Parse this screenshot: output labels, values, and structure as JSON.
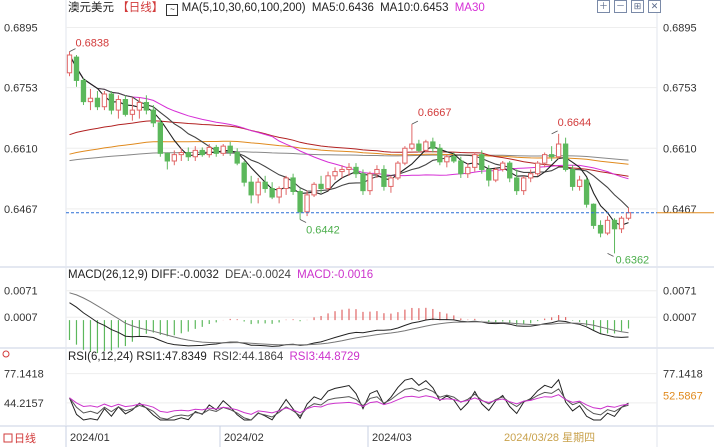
{
  "header": {
    "symbol": "澳元美元",
    "period": "【日线】",
    "ma_label": "MA(5,10,30,60,100,200)",
    "ma5": "MA5:0.6436",
    "ma10": "MA10:0.6453",
    "ma30": "MA30"
  },
  "toolbar": [
    "zoom-in-icon",
    "zoom-out-icon",
    "grid-icon",
    "close-icon"
  ],
  "colors": {
    "up": "#e06666",
    "down": "#5cb85c",
    "ma5": "#222222",
    "ma10": "#444444",
    "ma30": "#d62fd6",
    "ma60": "#b22222",
    "ma100": "#e08a1e",
    "ma200": "#888888",
    "dif": "#222222",
    "dea": "#777777",
    "macd_hist": "#cc33cc",
    "rsi1": "#222222",
    "rsi2": "#555555",
    "rsi3": "#cc33cc",
    "last_line": "#2a6fd6"
  },
  "chart_data": [
    {
      "type": "candlestick",
      "name": "price",
      "y_ticks": [
        "0.6895",
        "0.6753",
        "0.6610",
        "0.6467"
      ],
      "ylim": [
        0.6337,
        0.6922
      ],
      "x_ticks": [
        "2024/01",
        "2024/02",
        "2024/03",
        "2024/03/28 星期四"
      ],
      "annotations": [
        {
          "text": "0.6838",
          "value": 0.6838,
          "kind": "high"
        },
        {
          "text": "0.6442",
          "value": 0.6442,
          "kind": "low"
        },
        {
          "text": "0.6667",
          "value": 0.6667,
          "kind": "high"
        },
        {
          "text": "0.6644",
          "value": 0.6644,
          "kind": "high"
        },
        {
          "text": "0.6362",
          "value": 0.6362,
          "kind": "low"
        }
      ],
      "last_price": 0.6458,
      "candles": [
        [
          0.6788,
          0.6838,
          0.678,
          0.683
        ],
        [
          0.6825,
          0.683,
          0.6755,
          0.677
        ],
        [
          0.677,
          0.6775,
          0.6712,
          0.672
        ],
        [
          0.672,
          0.675,
          0.67,
          0.6728
        ],
        [
          0.6728,
          0.6745,
          0.67,
          0.6708
        ],
        [
          0.6708,
          0.6745,
          0.67,
          0.6738
        ],
        [
          0.6738,
          0.6745,
          0.669,
          0.67
        ],
        [
          0.67,
          0.6735,
          0.668,
          0.6725
        ],
        [
          0.6725,
          0.6735,
          0.6685,
          0.669
        ],
        [
          0.669,
          0.673,
          0.6675,
          0.67
        ],
        [
          0.67,
          0.673,
          0.668,
          0.6718
        ],
        [
          0.6718,
          0.6735,
          0.669,
          0.67
        ],
        [
          0.67,
          0.6712,
          0.666,
          0.667
        ],
        [
          0.667,
          0.668,
          0.659,
          0.6598
        ],
        [
          0.6598,
          0.66,
          0.656,
          0.658
        ],
        [
          0.658,
          0.6605,
          0.657,
          0.6595
        ],
        [
          0.6595,
          0.661,
          0.658,
          0.66
        ],
        [
          0.66,
          0.6612,
          0.658,
          0.659
        ],
        [
          0.659,
          0.6615,
          0.658,
          0.6605
        ],
        [
          0.6605,
          0.6612,
          0.659,
          0.6595
        ],
        [
          0.6595,
          0.662,
          0.6588,
          0.6612
        ],
        [
          0.6612,
          0.6618,
          0.659,
          0.6598
        ],
        [
          0.6598,
          0.662,
          0.6592,
          0.6615
        ],
        [
          0.6615,
          0.6625,
          0.6592,
          0.66
        ],
        [
          0.66,
          0.661,
          0.657,
          0.6575
        ],
        [
          0.6575,
          0.658,
          0.652,
          0.653
        ],
        [
          0.653,
          0.6545,
          0.648,
          0.65
        ],
        [
          0.65,
          0.654,
          0.648,
          0.653
        ],
        [
          0.653,
          0.6545,
          0.6505,
          0.6515
        ],
        [
          0.6515,
          0.653,
          0.649,
          0.6495
        ],
        [
          0.6495,
          0.652,
          0.648,
          0.6515
        ],
        [
          0.6515,
          0.6545,
          0.65,
          0.654
        ],
        [
          0.654,
          0.655,
          0.65,
          0.6508
        ],
        [
          0.6508,
          0.6515,
          0.6442,
          0.646
        ],
        [
          0.646,
          0.651,
          0.645,
          0.65
        ],
        [
          0.65,
          0.653,
          0.6495,
          0.6525
        ],
        [
          0.6525,
          0.6545,
          0.6505,
          0.6515
        ],
        [
          0.6515,
          0.6555,
          0.651,
          0.6545
        ],
        [
          0.6545,
          0.6565,
          0.6535,
          0.6555
        ],
        [
          0.6555,
          0.657,
          0.654,
          0.656
        ],
        [
          0.656,
          0.6575,
          0.6545,
          0.6565
        ],
        [
          0.6565,
          0.6575,
          0.654,
          0.655
        ],
        [
          0.655,
          0.656,
          0.65,
          0.651
        ],
        [
          0.651,
          0.6555,
          0.65,
          0.655
        ],
        [
          0.655,
          0.657,
          0.654,
          0.656
        ],
        [
          0.656,
          0.657,
          0.651,
          0.652
        ],
        [
          0.652,
          0.6545,
          0.6505,
          0.654
        ],
        [
          0.654,
          0.658,
          0.6535,
          0.6575
        ],
        [
          0.6575,
          0.6615,
          0.657,
          0.661
        ],
        [
          0.661,
          0.6667,
          0.6605,
          0.662
        ],
        [
          0.662,
          0.663,
          0.66,
          0.6605
        ],
        [
          0.6605,
          0.663,
          0.66,
          0.6625
        ],
        [
          0.6625,
          0.6635,
          0.66,
          0.661
        ],
        [
          0.661,
          0.662,
          0.657,
          0.6578
        ],
        [
          0.6578,
          0.6595,
          0.6565,
          0.659
        ],
        [
          0.659,
          0.66,
          0.6575,
          0.658
        ],
        [
          0.658,
          0.659,
          0.654,
          0.655
        ],
        [
          0.655,
          0.6575,
          0.654,
          0.6565
        ],
        [
          0.6565,
          0.66,
          0.6555,
          0.6595
        ],
        [
          0.6595,
          0.6605,
          0.655,
          0.656
        ],
        [
          0.656,
          0.657,
          0.652,
          0.6535
        ],
        [
          0.6535,
          0.6565,
          0.653,
          0.656
        ],
        [
          0.656,
          0.658,
          0.6555,
          0.6575
        ],
        [
          0.6575,
          0.658,
          0.653,
          0.654
        ],
        [
          0.654,
          0.656,
          0.65,
          0.651
        ],
        [
          0.651,
          0.6545,
          0.65,
          0.654
        ],
        [
          0.654,
          0.656,
          0.653,
          0.655
        ],
        [
          0.655,
          0.658,
          0.6545,
          0.6575
        ],
        [
          0.6575,
          0.66,
          0.6565,
          0.6595
        ],
        [
          0.6595,
          0.6615,
          0.658,
          0.659
        ],
        [
          0.659,
          0.6644,
          0.6585,
          0.662
        ],
        [
          0.662,
          0.6635,
          0.6555,
          0.656
        ],
        [
          0.656,
          0.657,
          0.651,
          0.652
        ],
        [
          0.652,
          0.6545,
          0.651,
          0.6535
        ],
        [
          0.6535,
          0.654,
          0.647,
          0.6478
        ],
        [
          0.6478,
          0.648,
          0.642,
          0.6428
        ],
        [
          0.6428,
          0.644,
          0.64,
          0.641
        ],
        [
          0.641,
          0.645,
          0.6405,
          0.644
        ],
        [
          0.644,
          0.6445,
          0.6362,
          0.642
        ],
        [
          0.642,
          0.645,
          0.641,
          0.6445
        ],
        [
          0.6445,
          0.647,
          0.644,
          0.6458
        ]
      ]
    },
    {
      "type": "line",
      "name": "macd",
      "title": "MACD(26,12,9)",
      "values_text": {
        "dif": "DIFF:-0.0032",
        "dea": "DEA:-0.0024",
        "macd": "MACD:-0.0016"
      },
      "y_ticks": [
        "0.0071",
        "0.0007"
      ],
      "ylim": [
        -0.0048,
        0.0092
      ]
    },
    {
      "type": "line",
      "name": "rsi",
      "title": "RSI(6,12,24)",
      "values_text": {
        "rsi1": "RSI1:47.8349",
        "rsi2": "RSI2:44.1864",
        "rsi3": "RSI3:44.8729"
      },
      "y_ticks": [
        "77.1418",
        "44.2157"
      ],
      "right_ticks": [
        "77.1418",
        "52.5867"
      ],
      "ylim": [
        25,
        88
      ]
    }
  ]
}
